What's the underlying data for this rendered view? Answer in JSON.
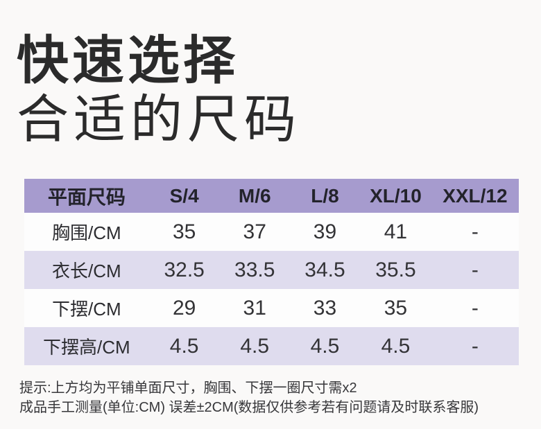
{
  "title": {
    "line1": "快速选择",
    "line2": "合适的尺码"
  },
  "size_table": {
    "columns": [
      "平面尺码",
      "S/4",
      "M/6",
      "L/8",
      "XL/10",
      "XXL/12"
    ],
    "rows": [
      {
        "label": "胸围/CM",
        "values": [
          "35",
          "37",
          "39",
          "41",
          "-"
        ]
      },
      {
        "label": "衣长/CM",
        "values": [
          "32.5",
          "33.5",
          "34.5",
          "35.5",
          "-"
        ]
      },
      {
        "label": "下摆/CM",
        "values": [
          "29",
          "31",
          "33",
          "35",
          "-"
        ]
      },
      {
        "label": "下摆高/CM",
        "values": [
          "4.5",
          "4.5",
          "4.5",
          "4.5",
          "-"
        ]
      }
    ]
  },
  "notes": {
    "line1": "提示:上方均为平铺单面尺寸，胸围、下摆一圈尺寸需x2",
    "line2": "成品手工测量(单位:CM) 误差±2CM(数据仅供参考若有问题请及时联系客服)"
  },
  "colors": {
    "header_bg": "#a69bce",
    "row_alt_bg": "#dfdcee",
    "row_bg": "#fdfdfd",
    "title_text": "#2b2b2b",
    "body_text": "#333336",
    "page_bg": "#faf9f8"
  }
}
